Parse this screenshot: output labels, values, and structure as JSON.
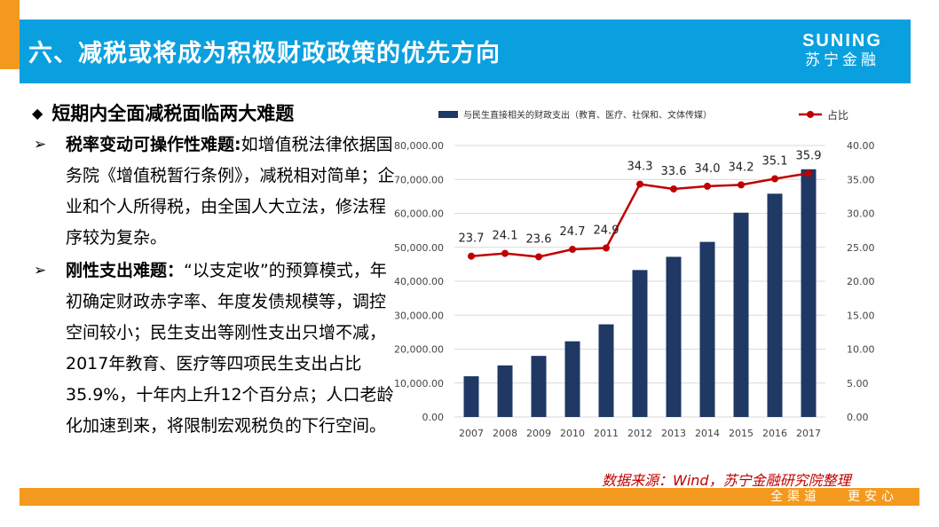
{
  "header": {
    "title": "六、减税或将成为积极财政政策的优先方向",
    "logo_en": "SUNING",
    "logo_cn": "苏宁金融"
  },
  "content": {
    "heading": "短期内全面减税面临两大难题",
    "bullets": [
      {
        "bold": "税率变动可操作性难题:",
        "text": "如增值税法律依据国务院《增值税暂行条例》，减税相对简单；企业和个人所得税，由全国人大立法，修法程序较为复杂。"
      },
      {
        "bold": "刚性支出难题：",
        "text": "“以支定收”的预算模式，年初确定财政赤字率、年度发债规模等，调控空间较小；民生支出等刚性支出只增不减，2017年教育、医疗等四项民生支出占比 35.9%，十年内上升12个百分点；人口老龄化加速到来，将限制宏观税负的下行空间。"
      }
    ]
  },
  "chart_data": {
    "type": "bar",
    "categories": [
      "2007",
      "2008",
      "2009",
      "2010",
      "2011",
      "2012",
      "2013",
      "2014",
      "2015",
      "2016",
      "2017"
    ],
    "series": [
      {
        "name": "与民生直接相关的财政支出（教育、医疗、社保和、文体传媒）",
        "type": "bar",
        "axis": "left",
        "color": "#1f3864",
        "values": [
          12000,
          15200,
          18000,
          22300,
          27300,
          43300,
          47200,
          51600,
          60200,
          65800,
          73000
        ]
      },
      {
        "name": "占比",
        "type": "line",
        "axis": "right",
        "color": "#c00000",
        "values": [
          23.7,
          24.1,
          23.6,
          24.7,
          24.9,
          34.3,
          33.6,
          34.0,
          34.2,
          35.1,
          35.9
        ],
        "labels": [
          "23.7",
          "24.1",
          "23.6",
          "24.7",
          "24.9",
          "34.3",
          "33.6",
          "34.0",
          "34.2",
          "35.1",
          "35.9"
        ]
      }
    ],
    "y_left": {
      "min": 0,
      "max": 80000,
      "ticks": [
        "0.00",
        "10,000.00",
        "20,000.00",
        "30,000.00",
        "40,000.00",
        "50,000.00",
        "60,000.00",
        "70,000.00",
        "80,000.00"
      ]
    },
    "y_right": {
      "min": 0,
      "max": 40,
      "ticks": [
        "0.00",
        "5.00",
        "10.00",
        "15.00",
        "20.00",
        "25.00",
        "30.00",
        "35.00",
        "40.00"
      ]
    },
    "grid": true,
    "legend_position": "top"
  },
  "source": "数据来源：Wind，苏宁金融研究院整理",
  "footer": {
    "slogan_left": "全渠道",
    "slogan_right": "更安心"
  },
  "colors": {
    "header_blue": "#0aa0df",
    "accent_orange": "#f39a1e",
    "bar": "#1f3864",
    "line": "#c00000"
  }
}
